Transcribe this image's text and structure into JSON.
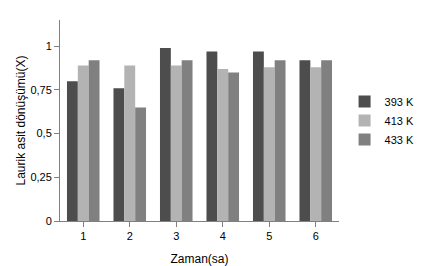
{
  "chart_data": {
    "type": "bar",
    "x_label": "Zaman(sa)",
    "y_label": "Laurik asit dönüşümü(X)",
    "categories": [
      "1",
      "2",
      "3",
      "4",
      "5",
      "6"
    ],
    "series": [
      {
        "name": "393 K",
        "color": "#4d4d4d",
        "values": [
          0.8,
          0.76,
          0.99,
          0.97,
          0.97,
          0.92
        ]
      },
      {
        "name": "413 K",
        "color": "#b3b3b3",
        "values": [
          0.89,
          0.89,
          0.89,
          0.87,
          0.88,
          0.88
        ]
      },
      {
        "name": "433 K",
        "color": "#808080",
        "values": [
          0.92,
          0.65,
          0.92,
          0.85,
          0.92,
          0.92
        ]
      }
    ],
    "ylim": [
      0,
      1.15
    ],
    "yticks": [
      0,
      {
        "value": 0.25,
        "label": "0,25"
      },
      {
        "value": 0.5,
        "label": "0,5"
      },
      {
        "value": 0.75,
        "label": "0,75"
      },
      1
    ],
    "grid": false,
    "legend": "right"
  }
}
